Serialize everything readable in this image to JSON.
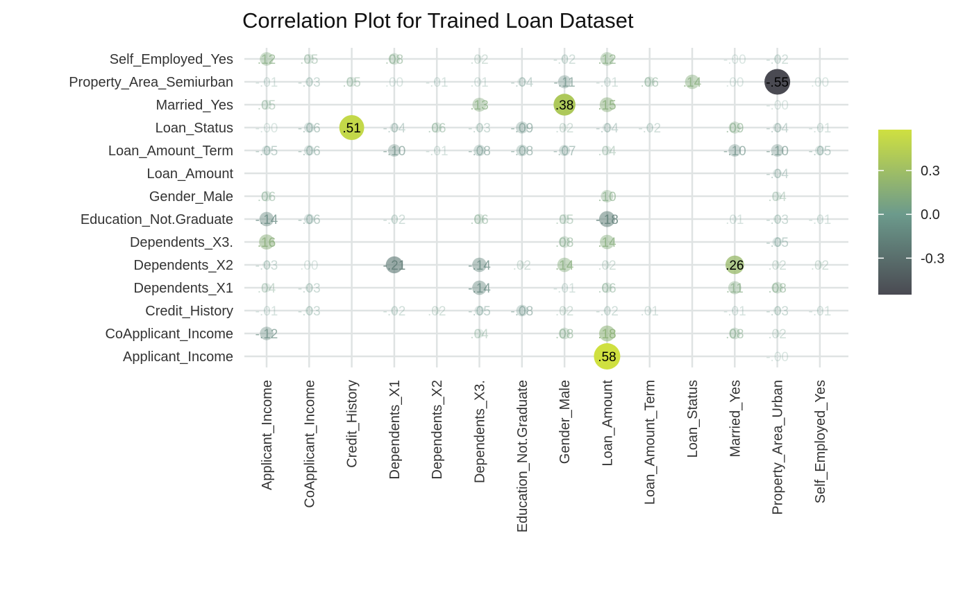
{
  "chart_data": {
    "type": "scatter",
    "title": "Correlation Plot for Trained Loan Dataset",
    "x_categories": [
      "Applicant_Income",
      "CoApplicant_Income",
      "Credit_History",
      "Dependents_X1",
      "Dependents_X2",
      "Dependents_X3.",
      "Education_Not.Graduate",
      "Gender_Male",
      "Loan_Amount",
      "Loan_Amount_Term",
      "Loan_Status",
      "Married_Yes",
      "Property_Area_Urban",
      "Self_Employed_Yes"
    ],
    "y_categories": [
      "Applicant_Income",
      "CoApplicant_Income",
      "Credit_History",
      "Dependents_X1",
      "Dependents_X2",
      "Dependents_X3.",
      "Education_Not.Graduate",
      "Gender_Male",
      "Loan_Amount",
      "Loan_Amount_Term",
      "Loan_Status",
      "Married_Yes",
      "Property_Area_Semiurban",
      "Self_Employed_Yes"
    ],
    "points": [
      {
        "x": "Applicant_Income",
        "y": "Self_Employed_Yes",
        "value": 0.12,
        "label": ".12"
      },
      {
        "x": "CoApplicant_Income",
        "y": "Self_Employed_Yes",
        "value": 0.05,
        "label": ".05"
      },
      {
        "x": "Dependents_X1",
        "y": "Self_Employed_Yes",
        "value": 0.08,
        "label": ".08"
      },
      {
        "x": "Dependents_X3.",
        "y": "Self_Employed_Yes",
        "value": 0.02,
        "label": ".02"
      },
      {
        "x": "Gender_Male",
        "y": "Self_Employed_Yes",
        "value": -0.02,
        "label": "-.02"
      },
      {
        "x": "Loan_Amount",
        "y": "Self_Employed_Yes",
        "value": 0.12,
        "label": ".12"
      },
      {
        "x": "Married_Yes",
        "y": "Self_Employed_Yes",
        "value": -0.0,
        "label": "-.00"
      },
      {
        "x": "Property_Area_Urban",
        "y": "Self_Employed_Yes",
        "value": -0.02,
        "label": "-.02"
      },
      {
        "x": "Applicant_Income",
        "y": "Property_Area_Semiurban",
        "value": -0.01,
        "label": "-.01"
      },
      {
        "x": "CoApplicant_Income",
        "y": "Property_Area_Semiurban",
        "value": -0.03,
        "label": "-.03"
      },
      {
        "x": "Credit_History",
        "y": "Property_Area_Semiurban",
        "value": 0.05,
        "label": ".05"
      },
      {
        "x": "Dependents_X1",
        "y": "Property_Area_Semiurban",
        "value": 0.0,
        "label": ".00"
      },
      {
        "x": "Dependents_X2",
        "y": "Property_Area_Semiurban",
        "value": -0.01,
        "label": "-.01"
      },
      {
        "x": "Dependents_X3.",
        "y": "Property_Area_Semiurban",
        "value": 0.01,
        "label": ".01"
      },
      {
        "x": "Education_Not.Graduate",
        "y": "Property_Area_Semiurban",
        "value": -0.04,
        "label": "-.04"
      },
      {
        "x": "Gender_Male",
        "y": "Property_Area_Semiurban",
        "value": -0.11,
        "label": "-.11"
      },
      {
        "x": "Loan_Amount",
        "y": "Property_Area_Semiurban",
        "value": -0.01,
        "label": "-.01"
      },
      {
        "x": "Loan_Amount_Term",
        "y": "Property_Area_Semiurban",
        "value": 0.06,
        "label": ".06"
      },
      {
        "x": "Loan_Status",
        "y": "Property_Area_Semiurban",
        "value": 0.14,
        "label": ".14"
      },
      {
        "x": "Married_Yes",
        "y": "Property_Area_Semiurban",
        "value": 0.0,
        "label": ".00"
      },
      {
        "x": "Property_Area_Urban",
        "y": "Property_Area_Semiurban",
        "value": -0.55,
        "label": "-.55"
      },
      {
        "x": "Self_Employed_Yes",
        "y": "Property_Area_Semiurban",
        "value": 0.0,
        "label": ".00"
      },
      {
        "x": "Applicant_Income",
        "y": "Married_Yes",
        "value": 0.05,
        "label": ".05"
      },
      {
        "x": "Dependents_X3.",
        "y": "Married_Yes",
        "value": 0.13,
        "label": ".13"
      },
      {
        "x": "Gender_Male",
        "y": "Married_Yes",
        "value": 0.38,
        "label": ".38"
      },
      {
        "x": "Loan_Amount",
        "y": "Married_Yes",
        "value": 0.15,
        "label": ".15"
      },
      {
        "x": "Property_Area_Urban",
        "y": "Married_Yes",
        "value": -0.0,
        "label": "-.00"
      },
      {
        "x": "Applicant_Income",
        "y": "Loan_Status",
        "value": -0.0,
        "label": "-.00"
      },
      {
        "x": "CoApplicant_Income",
        "y": "Loan_Status",
        "value": -0.06,
        "label": "-.06"
      },
      {
        "x": "Credit_History",
        "y": "Loan_Status",
        "value": 0.51,
        "label": ".51"
      },
      {
        "x": "Dependents_X1",
        "y": "Loan_Status",
        "value": -0.04,
        "label": "-.04"
      },
      {
        "x": "Dependents_X2",
        "y": "Loan_Status",
        "value": 0.06,
        "label": ".06"
      },
      {
        "x": "Dependents_X3.",
        "y": "Loan_Status",
        "value": -0.03,
        "label": "-.03"
      },
      {
        "x": "Education_Not.Graduate",
        "y": "Loan_Status",
        "value": -0.09,
        "label": "-.09"
      },
      {
        "x": "Gender_Male",
        "y": "Loan_Status",
        "value": 0.02,
        "label": ".02"
      },
      {
        "x": "Loan_Amount",
        "y": "Loan_Status",
        "value": -0.04,
        "label": "-.04"
      },
      {
        "x": "Loan_Amount_Term",
        "y": "Loan_Status",
        "value": -0.02,
        "label": "-.02"
      },
      {
        "x": "Married_Yes",
        "y": "Loan_Status",
        "value": 0.09,
        "label": ".09"
      },
      {
        "x": "Property_Area_Urban",
        "y": "Loan_Status",
        "value": -0.04,
        "label": "-.04"
      },
      {
        "x": "Self_Employed_Yes",
        "y": "Loan_Status",
        "value": -0.01,
        "label": "-.01"
      },
      {
        "x": "Applicant_Income",
        "y": "Loan_Amount_Term",
        "value": -0.05,
        "label": "-.05"
      },
      {
        "x": "CoApplicant_Income",
        "y": "Loan_Amount_Term",
        "value": -0.06,
        "label": "-.06"
      },
      {
        "x": "Dependents_X1",
        "y": "Loan_Amount_Term",
        "value": -0.1,
        "label": "-.10"
      },
      {
        "x": "Dependents_X2",
        "y": "Loan_Amount_Term",
        "value": -0.01,
        "label": "-.01"
      },
      {
        "x": "Dependents_X3.",
        "y": "Loan_Amount_Term",
        "value": -0.08,
        "label": "-.08"
      },
      {
        "x": "Education_Not.Graduate",
        "y": "Loan_Amount_Term",
        "value": -0.08,
        "label": "-.08"
      },
      {
        "x": "Gender_Male",
        "y": "Loan_Amount_Term",
        "value": -0.07,
        "label": "-.07"
      },
      {
        "x": "Loan_Amount",
        "y": "Loan_Amount_Term",
        "value": 0.04,
        "label": ".04"
      },
      {
        "x": "Married_Yes",
        "y": "Loan_Amount_Term",
        "value": -0.1,
        "label": "-.10"
      },
      {
        "x": "Property_Area_Urban",
        "y": "Loan_Amount_Term",
        "value": -0.1,
        "label": "-.10"
      },
      {
        "x": "Self_Employed_Yes",
        "y": "Loan_Amount_Term",
        "value": -0.05,
        "label": "-.05"
      },
      {
        "x": "Property_Area_Urban",
        "y": "Loan_Amount",
        "value": -0.04,
        "label": "-.04"
      },
      {
        "x": "Applicant_Income",
        "y": "Gender_Male",
        "value": 0.06,
        "label": ".06"
      },
      {
        "x": "Loan_Amount",
        "y": "Gender_Male",
        "value": 0.1,
        "label": ".10"
      },
      {
        "x": "Property_Area_Urban",
        "y": "Gender_Male",
        "value": 0.04,
        "label": ".04"
      },
      {
        "x": "Applicant_Income",
        "y": "Education_Not.Graduate",
        "value": -0.14,
        "label": "-.14"
      },
      {
        "x": "CoApplicant_Income",
        "y": "Education_Not.Graduate",
        "value": -0.06,
        "label": "-.06"
      },
      {
        "x": "Dependents_X1",
        "y": "Education_Not.Graduate",
        "value": -0.02,
        "label": "-.02"
      },
      {
        "x": "Dependents_X3.",
        "y": "Education_Not.Graduate",
        "value": 0.06,
        "label": ".06"
      },
      {
        "x": "Gender_Male",
        "y": "Education_Not.Graduate",
        "value": 0.05,
        "label": ".05"
      },
      {
        "x": "Loan_Amount",
        "y": "Education_Not.Graduate",
        "value": -0.18,
        "label": "-.18"
      },
      {
        "x": "Married_Yes",
        "y": "Education_Not.Graduate",
        "value": 0.01,
        "label": ".01"
      },
      {
        "x": "Property_Area_Urban",
        "y": "Education_Not.Graduate",
        "value": -0.03,
        "label": "-.03"
      },
      {
        "x": "Self_Employed_Yes",
        "y": "Education_Not.Graduate",
        "value": -0.01,
        "label": "-.01"
      },
      {
        "x": "Applicant_Income",
        "y": "Dependents_X3.",
        "value": 0.16,
        "label": ".16"
      },
      {
        "x": "Gender_Male",
        "y": "Dependents_X3.",
        "value": 0.08,
        "label": ".08"
      },
      {
        "x": "Loan_Amount",
        "y": "Dependents_X3.",
        "value": 0.14,
        "label": ".14"
      },
      {
        "x": "Property_Area_Urban",
        "y": "Dependents_X3.",
        "value": -0.05,
        "label": "-.05"
      },
      {
        "x": "Applicant_Income",
        "y": "Dependents_X2",
        "value": -0.03,
        "label": "-.03"
      },
      {
        "x": "CoApplicant_Income",
        "y": "Dependents_X2",
        "value": 0.0,
        "label": ".00"
      },
      {
        "x": "Dependents_X1",
        "y": "Dependents_X2",
        "value": -0.21,
        "label": "-.21"
      },
      {
        "x": "Dependents_X3.",
        "y": "Dependents_X2",
        "value": -0.14,
        "label": "-.14"
      },
      {
        "x": "Education_Not.Graduate",
        "y": "Dependents_X2",
        "value": 0.02,
        "label": ".02"
      },
      {
        "x": "Gender_Male",
        "y": "Dependents_X2",
        "value": 0.14,
        "label": ".14"
      },
      {
        "x": "Loan_Amount",
        "y": "Dependents_X2",
        "value": 0.02,
        "label": ".02"
      },
      {
        "x": "Married_Yes",
        "y": "Dependents_X2",
        "value": 0.26,
        "label": ".26"
      },
      {
        "x": "Property_Area_Urban",
        "y": "Dependents_X2",
        "value": 0.02,
        "label": ".02"
      },
      {
        "x": "Self_Employed_Yes",
        "y": "Dependents_X2",
        "value": 0.02,
        "label": ".02"
      },
      {
        "x": "Applicant_Income",
        "y": "Dependents_X1",
        "value": 0.04,
        "label": ".04"
      },
      {
        "x": "CoApplicant_Income",
        "y": "Dependents_X1",
        "value": -0.03,
        "label": "-.03"
      },
      {
        "x": "Dependents_X3.",
        "y": "Dependents_X1",
        "value": -0.14,
        "label": "-.14"
      },
      {
        "x": "Gender_Male",
        "y": "Dependents_X1",
        "value": -0.01,
        "label": "-.01"
      },
      {
        "x": "Loan_Amount",
        "y": "Dependents_X1",
        "value": 0.06,
        "label": ".06"
      },
      {
        "x": "Married_Yes",
        "y": "Dependents_X1",
        "value": 0.11,
        "label": ".11"
      },
      {
        "x": "Property_Area_Urban",
        "y": "Dependents_X1",
        "value": 0.08,
        "label": ".08"
      },
      {
        "x": "Applicant_Income",
        "y": "Credit_History",
        "value": -0.01,
        "label": "-.01"
      },
      {
        "x": "CoApplicant_Income",
        "y": "Credit_History",
        "value": -0.03,
        "label": "-.03"
      },
      {
        "x": "Dependents_X1",
        "y": "Credit_History",
        "value": -0.02,
        "label": "-.02"
      },
      {
        "x": "Dependents_X2",
        "y": "Credit_History",
        "value": 0.02,
        "label": ".02"
      },
      {
        "x": "Dependents_X3.",
        "y": "Credit_History",
        "value": -0.05,
        "label": "-.05"
      },
      {
        "x": "Education_Not.Graduate",
        "y": "Credit_History",
        "value": -0.08,
        "label": "-.08"
      },
      {
        "x": "Gender_Male",
        "y": "Credit_History",
        "value": 0.02,
        "label": ".02"
      },
      {
        "x": "Loan_Amount",
        "y": "Credit_History",
        "value": -0.02,
        "label": "-.02"
      },
      {
        "x": "Loan_Amount_Term",
        "y": "Credit_History",
        "value": 0.01,
        "label": ".01"
      },
      {
        "x": "Married_Yes",
        "y": "Credit_History",
        "value": -0.01,
        "label": "-.01"
      },
      {
        "x": "Property_Area_Urban",
        "y": "Credit_History",
        "value": -0.03,
        "label": "-.03"
      },
      {
        "x": "Self_Employed_Yes",
        "y": "Credit_History",
        "value": -0.01,
        "label": "-.01"
      },
      {
        "x": "Applicant_Income",
        "y": "CoApplicant_Income",
        "value": -0.12,
        "label": "-.12"
      },
      {
        "x": "Dependents_X3.",
        "y": "CoApplicant_Income",
        "value": 0.04,
        "label": ".04"
      },
      {
        "x": "Gender_Male",
        "y": "CoApplicant_Income",
        "value": 0.08,
        "label": ".08"
      },
      {
        "x": "Loan_Amount",
        "y": "CoApplicant_Income",
        "value": 0.18,
        "label": ".18"
      },
      {
        "x": "Married_Yes",
        "y": "CoApplicant_Income",
        "value": 0.08,
        "label": ".08"
      },
      {
        "x": "Property_Area_Urban",
        "y": "CoApplicant_Income",
        "value": 0.02,
        "label": ".02"
      },
      {
        "x": "Loan_Amount",
        "y": "Applicant_Income",
        "value": 0.58,
        "label": ".58"
      },
      {
        "x": "Property_Area_Urban",
        "y": "Applicant_Income",
        "value": -0.0,
        "label": "-.00"
      }
    ],
    "color_scale": {
      "min": -0.55,
      "max": 0.58,
      "stops": [
        {
          "value": -0.55,
          "color": "#4a4a52"
        },
        {
          "value": 0.0,
          "color": "#6c9a8c"
        },
        {
          "value": 0.58,
          "color": "#cfe040"
        }
      ],
      "ticks": [
        "0.3",
        "0.0",
        "-0.3"
      ],
      "tick_values": [
        0.3,
        0.0,
        -0.3
      ],
      "placement": "right"
    },
    "grid": true,
    "grid_color": "#dfe3e3"
  }
}
